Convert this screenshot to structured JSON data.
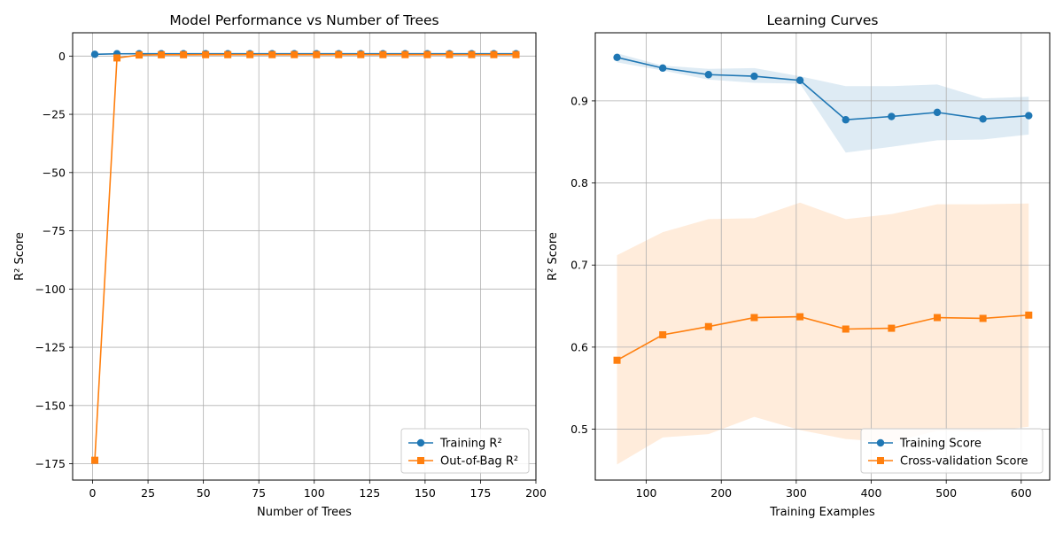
{
  "chart_data": [
    {
      "type": "line",
      "title": "Model Performance vs Number of Trees",
      "xlabel": "Number of Trees",
      "ylabel": "R² Score",
      "xlim": [
        -9,
        200
      ],
      "ylim": [
        -182,
        10
      ],
      "xticks": [
        0,
        25,
        50,
        75,
        100,
        125,
        150,
        175,
        200
      ],
      "yticks": [
        0,
        -25,
        -50,
        -75,
        -100,
        -125,
        -150,
        -175
      ],
      "grid": true,
      "legend": "lower-right",
      "x": [
        1,
        11,
        21,
        31,
        41,
        51,
        61,
        71,
        81,
        91,
        101,
        111,
        121,
        131,
        141,
        151,
        161,
        171,
        181,
        191
      ],
      "series": [
        {
          "name": "Training R²",
          "color": "#1f77b4",
          "marker": "circle",
          "values": [
            0.75,
            0.97,
            0.98,
            0.98,
            0.98,
            0.98,
            0.98,
            0.98,
            0.98,
            0.98,
            0.98,
            0.98,
            0.98,
            0.98,
            0.98,
            0.98,
            0.98,
            0.98,
            0.98,
            0.98
          ]
        },
        {
          "name": "Out-of-Bag R²",
          "color": "#ff7f0e",
          "marker": "square",
          "values": [
            -173.5,
            -0.8,
            0.45,
            0.55,
            0.58,
            0.6,
            0.6,
            0.61,
            0.61,
            0.62,
            0.62,
            0.62,
            0.62,
            0.62,
            0.62,
            0.62,
            0.62,
            0.62,
            0.62,
            0.62
          ]
        }
      ]
    },
    {
      "type": "line",
      "title": "Learning Curves",
      "xlabel": "Training Examples",
      "ylabel": "R² Score",
      "xlim": [
        32,
        638
      ],
      "ylim": [
        0.438,
        0.983
      ],
      "xticks": [
        100,
        200,
        300,
        400,
        500,
        600
      ],
      "yticks": [
        0.5,
        0.6,
        0.7,
        0.8,
        0.9
      ],
      "grid": true,
      "legend": "lower-right",
      "x": [
        61,
        122,
        183,
        244,
        305,
        366,
        427,
        488,
        549,
        610
      ],
      "series": [
        {
          "name": "Training Score",
          "color": "#1f77b4",
          "marker": "circle",
          "values": [
            0.953,
            0.94,
            0.932,
            0.93,
            0.925,
            0.877,
            0.881,
            0.886,
            0.878,
            0.882
          ],
          "band_lower": [
            0.947,
            0.937,
            0.926,
            0.922,
            0.921,
            0.837,
            0.844,
            0.852,
            0.853,
            0.859
          ],
          "band_upper": [
            0.958,
            0.943,
            0.939,
            0.94,
            0.93,
            0.918,
            0.918,
            0.92,
            0.903,
            0.905
          ]
        },
        {
          "name": "Cross-validation Score",
          "color": "#ff7f0e",
          "marker": "square",
          "values": [
            0.584,
            0.615,
            0.625,
            0.636,
            0.637,
            0.622,
            0.623,
            0.636,
            0.635,
            0.639
          ],
          "band_lower": [
            0.457,
            0.49,
            0.494,
            0.515,
            0.499,
            0.488,
            0.484,
            0.498,
            0.497,
            0.503
          ],
          "band_upper": [
            0.712,
            0.74,
            0.756,
            0.757,
            0.776,
            0.756,
            0.762,
            0.774,
            0.774,
            0.775
          ]
        }
      ]
    }
  ]
}
